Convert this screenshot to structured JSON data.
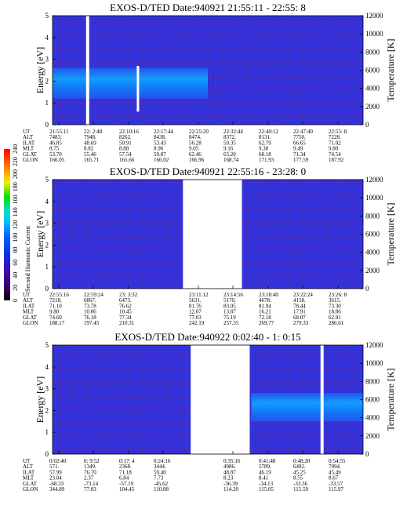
{
  "chart_data": {
    "type": "heatmap",
    "panels": [
      {
        "title": "EXOS-D/TED   Date:940921  21:55:11 - 22:55: 8",
        "ylabel": "Energy [eV]",
        "y2label": "Temperature [K]",
        "ylim": [
          0,
          5
        ],
        "y2lim": [
          0,
          12000
        ],
        "yticks": [
          "0",
          "1",
          "2",
          "3",
          "4",
          "5"
        ],
        "y2ticks": [
          "0",
          "2000",
          "4000",
          "6000",
          "8000",
          "10000",
          "12000"
        ],
        "gaps": [
          [
            0.108,
            0.118
          ]
        ],
        "bright_band": {
          "x": [
            0.0,
            0.5
          ],
          "y": [
            1.2,
            2.6
          ]
        },
        "event_marker": {
          "x": 0.275,
          "y": [
            0.6,
            2.7
          ]
        },
        "table": {
          "rows": [
            "UT",
            "ALT",
            "ILAT",
            "MLT",
            "GLAT",
            "GLON"
          ],
          "columns": [
            [
              "21:55:11",
              "7483.",
              "46.85",
              "8.75",
              "53.70",
              "166.05"
            ],
            [
              "22: 2:48",
              "7948.",
              "48.69",
              "8.82",
              "55.46",
              "165.71"
            ],
            [
              "22:10:16",
              "8262.",
              "50.91",
              "8.88",
              "57.54",
              "165.66"
            ],
            [
              "22:17:44",
              "8438.",
              "53.43",
              "8.96",
              "59.87",
              "166.02"
            ],
            [
              "22:25:20",
              "8474.",
              "56.28",
              "9.05",
              "62.46",
              "166.96"
            ],
            [
              "22:32:44",
              "8372.",
              "59.35",
              "9.16",
              "65.20",
              "168.74"
            ],
            [
              "22:40:12",
              "8131.",
              "62.79",
              "9.30",
              "68.18",
              "171.93"
            ],
            [
              "22:47:40",
              "7750.",
              "66.65",
              "9.49",
              "71.34",
              "177.59"
            ],
            [
              "22:55: 8",
              "7228.",
              "71.02",
              "9.80",
              "74.54",
              "187.92"
            ]
          ]
        }
      },
      {
        "title": "EXOS-D/TED   Date:940921  22:55:16 - 23:28: 0",
        "ylabel": "Energy [eV]",
        "y2label": "Temperature [K]",
        "ylim": [
          0,
          5
        ],
        "y2lim": [
          0,
          12000
        ],
        "yticks": [
          "0",
          "1",
          "2",
          "3",
          "4",
          "5"
        ],
        "y2ticks": [
          "0",
          "2000",
          "4000",
          "6000",
          "8000",
          "10000",
          "12000"
        ],
        "gaps": [
          [
            0.42,
            0.61
          ]
        ],
        "table": {
          "rows": [
            "UT",
            "ALT",
            "ILAT",
            "MLT",
            "GLAT",
            "GLON"
          ],
          "columns": [
            [
              "22:55:16",
              "7218.",
              "71.10",
              "9.80",
              "74.60",
              "188.17"
            ],
            [
              "22:59:24",
              "6867.",
              "73.78",
              "10.06",
              "76.18",
              "197.45"
            ],
            [
              "23: 3:32",
              "6473.",
              "76.62",
              "10.45",
              "77.34",
              "210.31"
            ],
            [
              "",
              "",
              "",
              "",
              "",
              ""
            ],
            [
              "23:11:12",
              "5631.",
              "81.76",
              "12.07",
              "77.03",
              "242.19"
            ],
            [
              "23:14:56",
              "5170.",
              "83.05",
              "13.87",
              "75.19",
              "257.35"
            ],
            [
              "23:18:40",
              "4678.",
              "81.94",
              "16.21",
              "72.18",
              "269.77"
            ],
            [
              "23:22:24",
              "4158.",
              "78.44",
              "17.91",
              "68.07",
              "279.33"
            ],
            [
              "23:26: 8",
              "3615.",
              "73.30",
              "18.86",
              "62.91",
              "286.61"
            ]
          ]
        }
      },
      {
        "title": "EXOS-D/TED   Date:940922  0:02:40 - 1: 0:15",
        "ylabel": "Energy [eV]",
        "y2label": "Temperature [K]",
        "ylim": [
          0,
          5
        ],
        "y2lim": [
          0,
          12000
        ],
        "yticks": [
          "0",
          "1",
          "2",
          "3",
          "4",
          "5"
        ],
        "y2ticks": [
          "0",
          "2000",
          "4000",
          "6000",
          "8000",
          "10000",
          "12000"
        ],
        "gaps": [
          [
            0.445,
            0.635
          ],
          [
            0.863,
            0.873
          ]
        ],
        "bright_band": {
          "x": [
            0.64,
            1.0
          ],
          "y": [
            1.5,
            2.8
          ]
        },
        "table": {
          "rows": [
            "UT",
            "ALT",
            "ILAT",
            "MLT",
            "GLAT",
            "GLON"
          ],
          "columns": [
            [
              "0:02:40",
              "571.",
              "57.99",
              "23.04",
              "-68.33",
              "344.89"
            ],
            [
              "0: 9:52",
              "1349.",
              "76.70",
              "2.37",
              "-73.14",
              "77.03"
            ],
            [
              "0:17: 4",
              "2368.",
              "71.18",
              "6.84",
              "-57.19",
              "104.45"
            ],
            [
              "0:24:16",
              "3444.",
              "59.40",
              "7.73",
              "-45.62",
              "110.88"
            ],
            [
              "",
              "",
              "",
              "",
              "",
              ""
            ],
            [
              "0:35:16",
              "4986.",
              "48.87",
              "8.23",
              "-36.39",
              "114.20"
            ],
            [
              "0:41:48",
              "5789.",
              "46.19",
              "8.41",
              "-34.13",
              "115.05"
            ],
            [
              "0:48:20",
              "6492.",
              "45.25",
              "8.55",
              "-33.36",
              "115.59"
            ],
            [
              "0:54:55",
              "7094.",
              "45.49",
              "8.67",
              "-33.57",
              "115.97"
            ]
          ]
        }
      }
    ],
    "colorbar": {
      "label": "Second Harmonic Current",
      "range": [
        0,
        240
      ],
      "ticks": [
        "0",
        "20",
        "40",
        "60",
        "80",
        "100",
        "120",
        "140",
        "160",
        "180",
        "200",
        "220",
        "240"
      ]
    }
  }
}
